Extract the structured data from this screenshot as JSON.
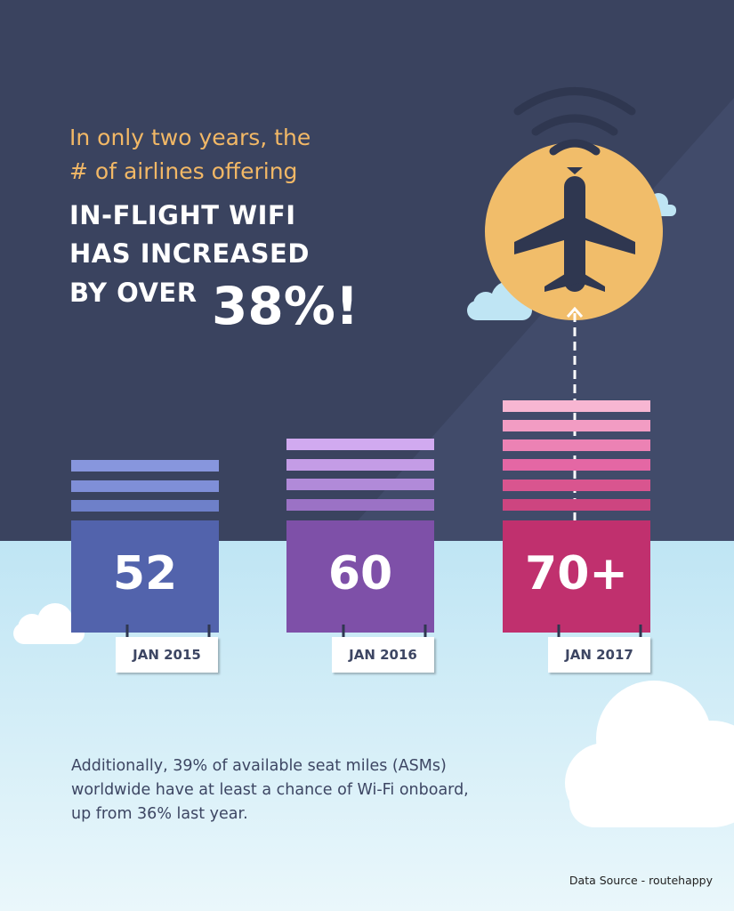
{
  "headline": {
    "lines": [
      "In only two years, the",
      "# of airlines offering",
      "IN-FLIGHT WIFI",
      "HAS INCREASED",
      "BY OVER"
    ],
    "highlight": "38%!"
  },
  "cards": [
    {
      "value": "52",
      "label": "JAN 2015"
    },
    {
      "value": "60",
      "label": "JAN 2016"
    },
    {
      "value": "70+",
      "label": "JAN 2017"
    }
  ],
  "note": {
    "lines": [
      "Additionally, 39% of available seat miles (ASMs)",
      "worldwide have at least a chance of Wi-Fi onboard,",
      "up from 36% last year."
    ]
  },
  "source": "Data Source - routehappy"
}
